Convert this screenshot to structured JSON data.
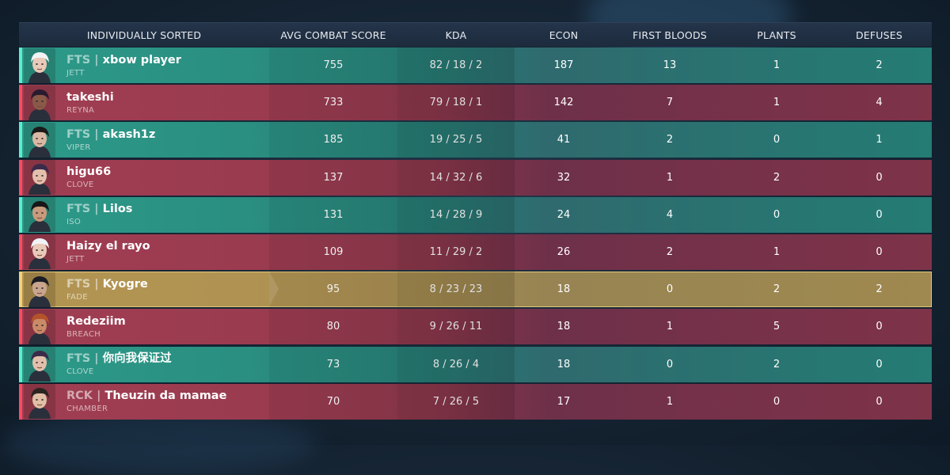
{
  "header": {
    "name": "INDIVIDUALLY SORTED",
    "acs": "AVG COMBAT SCORE",
    "kda": "KDA",
    "econ": "ECON",
    "first_bloods": "FIRST BLOODS",
    "plants": "PLANTS",
    "defuses": "DEFUSES"
  },
  "colors": {
    "team_ally": "#2d9a89",
    "team_enemy": "#a03e52",
    "self": "#b39452"
  },
  "players": [
    {
      "team": "teal",
      "tag": "FTS | ",
      "name": "xbow player",
      "agent": "JETT",
      "acs": "755",
      "kda": "82 / 18 / 2",
      "econ": "187",
      "fb": "13",
      "plants": "1",
      "defuses": "2",
      "skin": "#e9c9b8",
      "hair": "#f2f3f6"
    },
    {
      "team": "red",
      "tag": "",
      "name": "takeshi",
      "agent": "REYNA",
      "acs": "733",
      "kda": "79 / 18 / 1",
      "econ": "142",
      "fb": "7",
      "plants": "1",
      "defuses": "4",
      "skin": "#8a5a48",
      "hair": "#2a1a2e"
    },
    {
      "team": "teal",
      "tag": "FTS | ",
      "name": "akash1z",
      "agent": "VIPER",
      "acs": "185",
      "kda": "19 / 25 / 5",
      "econ": "41",
      "fb": "2",
      "plants": "0",
      "defuses": "1",
      "skin": "#d9b8a4",
      "hair": "#1a1a1a"
    },
    {
      "team": "red",
      "tag": "",
      "name": "higu66",
      "agent": "CLOVE",
      "acs": "137",
      "kda": "14 / 32 / 6",
      "econ": "32",
      "fb": "1",
      "plants": "2",
      "defuses": "0",
      "skin": "#e3c0ac",
      "hair": "#3b2b4a"
    },
    {
      "team": "teal",
      "tag": "FTS | ",
      "name": "Lilos",
      "agent": "ISO",
      "acs": "131",
      "kda": "14 / 28 / 9",
      "econ": "24",
      "fb": "4",
      "plants": "0",
      "defuses": "0",
      "skin": "#c99a7c",
      "hair": "#171717"
    },
    {
      "team": "red",
      "tag": "",
      "name": "Haizy el rayo",
      "agent": "JETT",
      "acs": "109",
      "kda": "11 / 29 / 2",
      "econ": "26",
      "fb": "2",
      "plants": "1",
      "defuses": "0",
      "skin": "#e9c9b8",
      "hair": "#f2f3f6"
    },
    {
      "team": "gold",
      "tag": "FTS | ",
      "name": "Kyogre",
      "agent": "FADE",
      "acs": "95",
      "kda": "8 / 23 / 23",
      "econ": "18",
      "fb": "0",
      "plants": "2",
      "defuses": "2",
      "skin": "#c9a58f",
      "hair": "#1c1c24"
    },
    {
      "team": "red",
      "tag": "",
      "name": "Redeziim",
      "agent": "BREACH",
      "acs": "80",
      "kda": "9 / 26 / 11",
      "econ": "18",
      "fb": "1",
      "plants": "5",
      "defuses": "0",
      "skin": "#c98a68",
      "hair": "#b4532a"
    },
    {
      "team": "teal",
      "tag": "FTS | ",
      "name": "你向我保证过",
      "agent": "CLOVE",
      "acs": "73",
      "kda": "8 / 26 / 4",
      "econ": "18",
      "fb": "0",
      "plants": "2",
      "defuses": "0",
      "skin": "#e3c0ac",
      "hair": "#3b2b4a"
    },
    {
      "team": "red",
      "tag": "RCK | ",
      "name": "Theuzin da mamae",
      "agent": "CHAMBER",
      "acs": "70",
      "kda": "7 / 26 / 5",
      "econ": "17",
      "fb": "1",
      "plants": "0",
      "defuses": "0",
      "skin": "#e0bfa6",
      "hair": "#2b2420"
    }
  ]
}
